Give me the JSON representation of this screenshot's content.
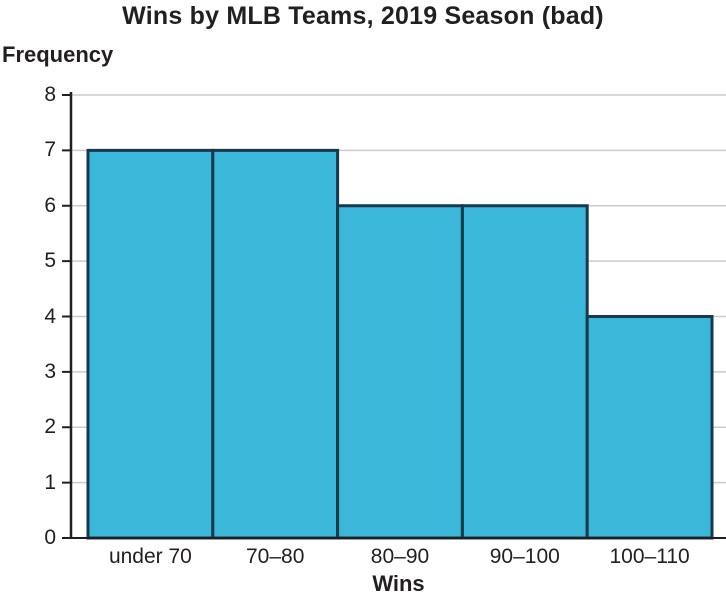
{
  "title": "Wins by MLB Teams, 2019 Season (bad)",
  "colors": {
    "bar_fill": "#3bb8d9",
    "bar_border": "#173a4c",
    "gridline": "#cccccc",
    "axis": "#231f20",
    "text": "#231f20",
    "background": "#ffffff"
  },
  "chart_data": {
    "type": "bar",
    "subtype": "histogram",
    "title": "Wins by MLB Teams, 2019 Season (bad)",
    "xlabel": "Wins",
    "ylabel": "Frequency",
    "categories": [
      "under 70",
      "70–80",
      "80–90",
      "90–100",
      "100–110"
    ],
    "values": [
      7,
      7,
      6,
      6,
      4
    ],
    "ylim": [
      0,
      8
    ],
    "yticks": [
      0,
      1,
      2,
      3,
      4,
      5,
      6,
      7,
      8
    ],
    "grid": true,
    "gridlines": "horizontal",
    "legend": false,
    "bars_touch": true
  }
}
